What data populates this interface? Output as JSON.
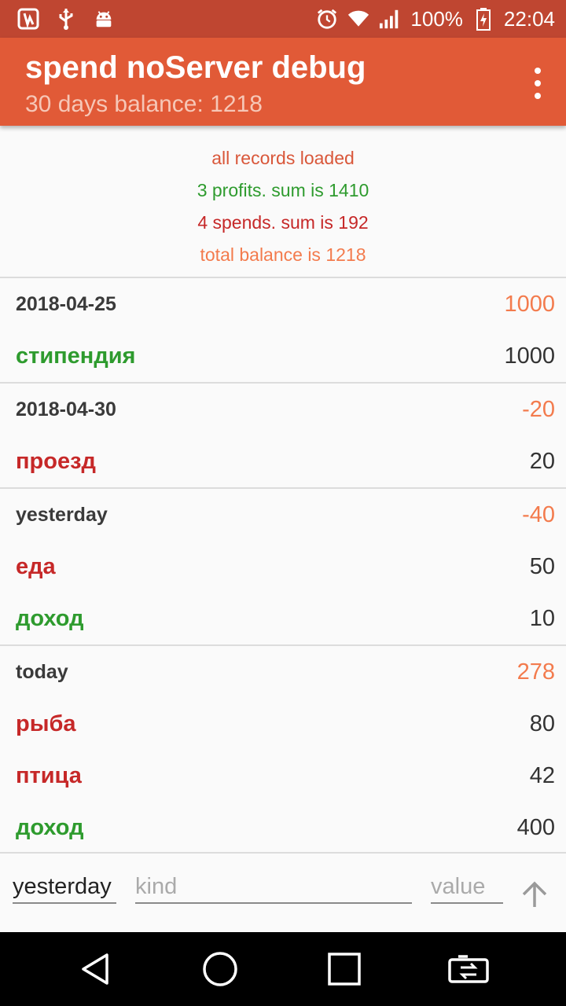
{
  "status_bar": {
    "battery": "100%",
    "time": "22:04",
    "icons": [
      "app-notification-icon",
      "usb-icon",
      "android-debug-icon",
      "alarm-icon",
      "wifi-icon",
      "signal-icon",
      "battery-charging-icon"
    ]
  },
  "toolbar": {
    "title": "spend noServer debug",
    "subtitle": "30 days balance: 1218",
    "menu_icon": "more-vert-icon"
  },
  "summary": {
    "loaded": "all records loaded",
    "profits": "3 profits. sum is 1410",
    "spends": "4 spends. sum is 192",
    "total": "total balance is 1218"
  },
  "colors": {
    "toolbar": "#e15a37",
    "status_bar": "#bf4631",
    "spend": "#c62828",
    "profit": "#2e9b2e",
    "balance": "#f37b4d"
  },
  "groups": [
    {
      "date": "2018-04-25",
      "total": "1000",
      "items": [
        {
          "kind": "стипендия",
          "value": "1000",
          "type": "profit"
        }
      ]
    },
    {
      "date": "2018-04-30",
      "total": "-20",
      "items": [
        {
          "kind": "проезд",
          "value": "20",
          "type": "spend"
        }
      ]
    },
    {
      "date": "yesterday",
      "total": "-40",
      "items": [
        {
          "kind": "еда",
          "value": "50",
          "type": "spend"
        },
        {
          "kind": "доход",
          "value": "10",
          "type": "profit"
        }
      ]
    },
    {
      "date": "today",
      "total": "278",
      "items": [
        {
          "kind": "рыба",
          "value": "80",
          "type": "spend"
        },
        {
          "kind": "птица",
          "value": "42",
          "type": "spend"
        },
        {
          "kind": "доход",
          "value": "400",
          "type": "profit"
        }
      ]
    }
  ],
  "input": {
    "date_value": "yesterday",
    "kind_placeholder": "kind",
    "value_placeholder": "value",
    "send_icon": "arrow-up-icon"
  },
  "nav": {
    "icons": [
      "back-icon",
      "home-icon",
      "recents-icon",
      "screen-switch-icon"
    ]
  }
}
